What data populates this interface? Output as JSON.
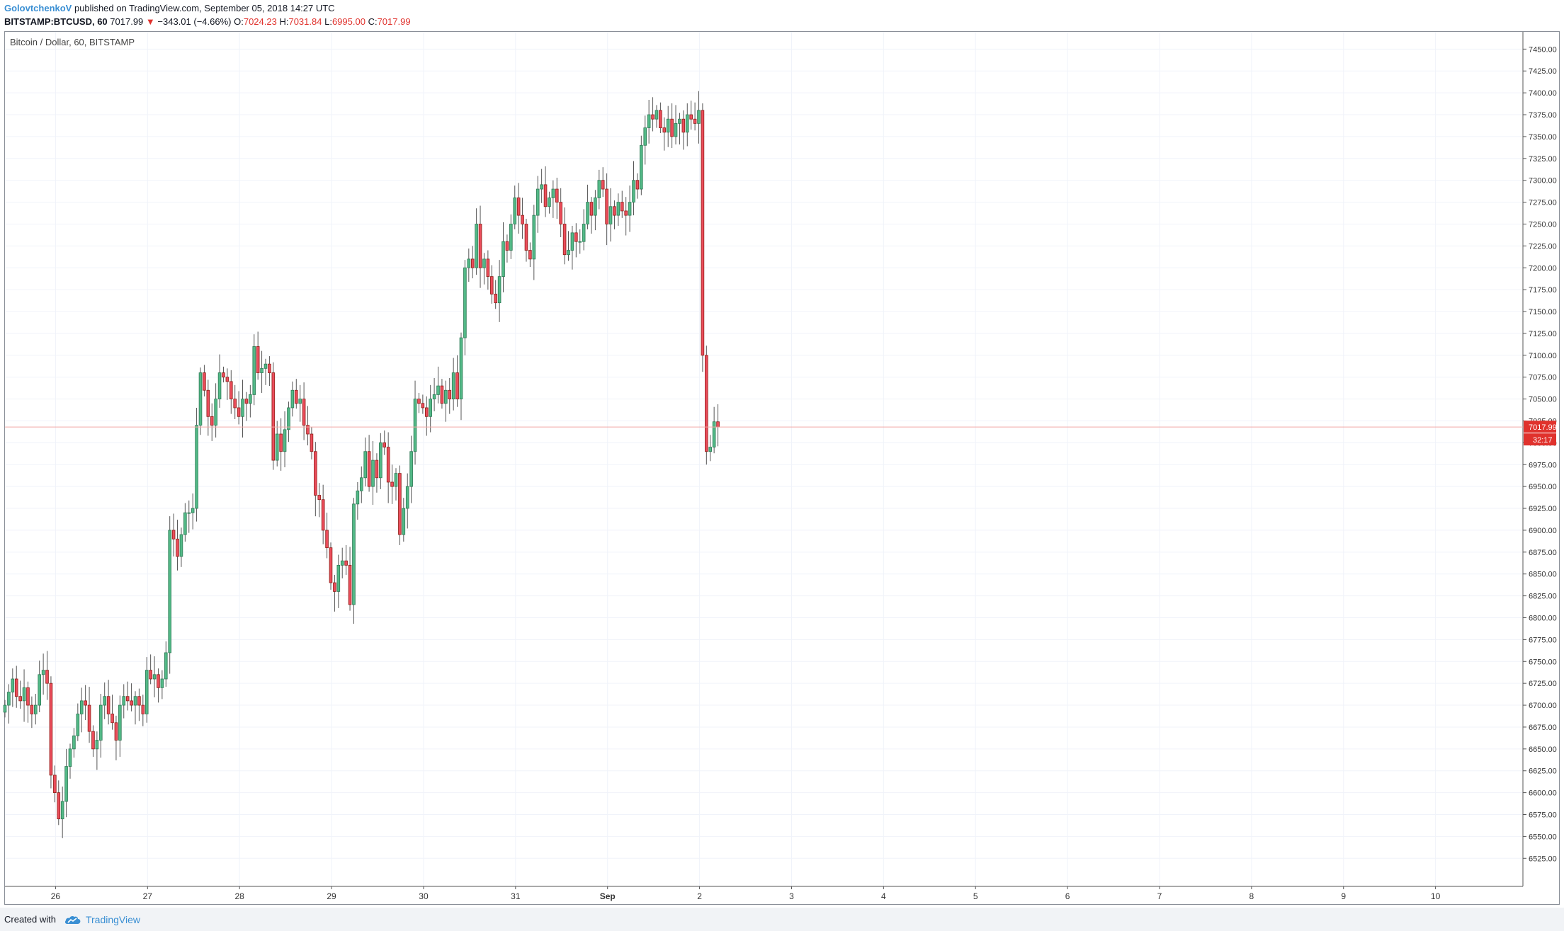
{
  "header": {
    "author": "GolovtchenkoV",
    "published": " published on TradingView.com, September 05, 2018 14:27 UTC",
    "symbol": "BITSTAMP:BTCUSD, 60",
    "price": "7017.99",
    "change_arrow": "▼",
    "change": "−343.01 (−4.66%)",
    "o_label": "O:",
    "o_value": "7024.23",
    "h_label": "H:",
    "h_value": "7031.84",
    "l_label": "L:",
    "l_value": "6995.00",
    "c_label": "C:",
    "c_value": "7017.99"
  },
  "footer": {
    "created_with": "Created with",
    "brand": "TradingView",
    "logo_icon": "tradingview-cloud-icon"
  },
  "colors": {
    "up": "#53b987",
    "down": "#eb4d5c",
    "price_line": "#f2a7a4",
    "price_label": "#e0322d",
    "grid": "#f0f3fa"
  },
  "chart_data": {
    "type": "candlestick",
    "title": "Bitcoin / Dollar, 60, BITSTAMP",
    "ylim": [
      6505,
      7460
    ],
    "ylabels": [
      "7450.00",
      "7425.00",
      "7400.00",
      "7375.00",
      "7350.00",
      "7325.00",
      "7300.00",
      "7275.00",
      "7250.00",
      "7225.00",
      "7200.00",
      "7175.00",
      "7150.00",
      "7125.00",
      "7100.00",
      "7075.00",
      "7050.00",
      "7025.00",
      "7000.00",
      "6975.00",
      "6950.00",
      "6925.00",
      "6900.00",
      "6875.00",
      "6850.00",
      "6825.00",
      "6800.00",
      "6775.00",
      "6750.00",
      "6725.00",
      "6700.00",
      "6675.00",
      "6650.00",
      "6625.00",
      "6600.00",
      "6575.00",
      "6550.00",
      "6525.00"
    ],
    "xlim_days": [
      25.45,
      10.95
    ],
    "xlabels": [
      {
        "label": "26",
        "day": 26
      },
      {
        "label": "27",
        "day": 27
      },
      {
        "label": "28",
        "day": 28
      },
      {
        "label": "29",
        "day": 29
      },
      {
        "label": "30",
        "day": 30
      },
      {
        "label": "31",
        "day": 31
      },
      {
        "label": "Sep",
        "day": 32
      },
      {
        "label": "2",
        "day": 33
      },
      {
        "label": "3",
        "day": 34
      },
      {
        "label": "4",
        "day": 35
      },
      {
        "label": "5",
        "day": 36
      },
      {
        "label": "6",
        "day": 37
      },
      {
        "label": "7",
        "day": 38
      },
      {
        "label": "8",
        "day": 39
      },
      {
        "label": "9",
        "day": 40
      },
      {
        "label": "10",
        "day": 41
      }
    ],
    "last_price": "7017.99",
    "countdown": "32:17",
    "closes": [
      6700,
      6715,
      6730,
      6710,
      6705,
      6720,
      6700,
      6690,
      6700,
      6735,
      6740,
      6725,
      6620,
      6600,
      6570,
      6590,
      6630,
      6650,
      6665,
      6690,
      6705,
      6700,
      6670,
      6650,
      6660,
      6700,
      6710,
      6690,
      6680,
      6660,
      6700,
      6710,
      6705,
      6700,
      6710,
      6700,
      6690,
      6740,
      6730,
      6735,
      6720,
      6730,
      6760,
      6900,
      6890,
      6870,
      6895,
      6920,
      6920,
      6925,
      7020,
      7080,
      7060,
      7030,
      7020,
      7050,
      7080,
      7075,
      7070,
      7050,
      7040,
      7030,
      7050,
      7045,
      7055,
      7110,
      7080,
      7085,
      7090,
      7080,
      6980,
      7010,
      6990,
      7015,
      7040,
      7060,
      7045,
      7050,
      7020,
      7010,
      6990,
      6940,
      6935,
      6900,
      6880,
      6840,
      6830,
      6860,
      6865,
      6860,
      6815,
      6930,
      6945,
      6960,
      6990,
      6950,
      6980,
      6960,
      7000,
      6995,
      6955,
      6950,
      6965,
      6895,
      6925,
      6950,
      6990,
      7050,
      7045,
      7040,
      7030,
      7050,
      7055,
      7065,
      7045,
      7060,
      7050,
      7080,
      7050,
      7120,
      7200,
      7210,
      7200,
      7250,
      7200,
      7210,
      7190,
      7170,
      7160,
      7190,
      7230,
      7220,
      7250,
      7280,
      7260,
      7250,
      7220,
      7210,
      7260,
      7290,
      7295,
      7270,
      7280,
      7290,
      7275,
      7250,
      7215,
      7220,
      7240,
      7230,
      7230,
      7250,
      7275,
      7260,
      7280,
      7300,
      7290,
      7250,
      7270,
      7260,
      7275,
      7265,
      7260,
      7275,
      7300,
      7290,
      7340,
      7360,
      7375,
      7370,
      7380,
      7360,
      7355,
      7370,
      7350,
      7365,
      7370,
      7355,
      7375,
      7370,
      7365,
      7380,
      7100,
      6990,
      6995,
      7024,
      7017.99
    ]
  }
}
